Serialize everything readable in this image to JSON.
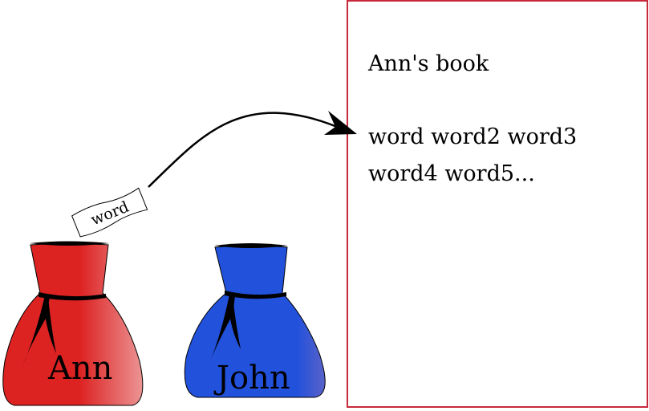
{
  "bags": [
    {
      "label": "Ann",
      "color": "#dd2222",
      "highlight": "#ec9494"
    },
    {
      "label": "John",
      "color": "#2251dc",
      "highlight": "#5a62c8"
    }
  ],
  "card": {
    "word": "word"
  },
  "book": {
    "title": "Ann's book",
    "lines": [
      "word word2 word3",
      "word4 word5..."
    ],
    "border_color": "#c8283c"
  }
}
